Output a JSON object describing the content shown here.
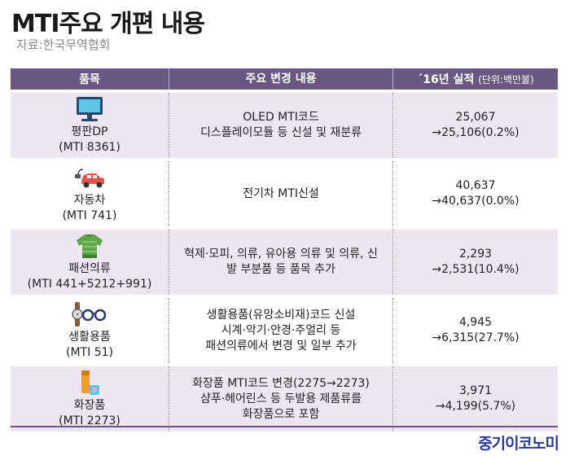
{
  "title": "MTI주요 개편 내용",
  "source": "자료:한국무역협회",
  "header": {
    "col1": "품목",
    "col2": "주요 변경 내용",
    "col3_main": "´16년 실적",
    "col3_unit": "(단위:백만불)"
  },
  "rows": [
    {
      "icon": "monitor-icon",
      "name": "평판DP",
      "code": "(MTI 8361)",
      "change": [
        "OLED MTI코드",
        "디스플레이모듈 등 신설 및 재분류"
      ],
      "perf": [
        "25,067",
        "→25,106(0.2%)"
      ]
    },
    {
      "icon": "car-icon",
      "name": "자동차",
      "code": "(MTI 741)",
      "change": [
        "전기차 MTI신설"
      ],
      "perf": [
        "40,637",
        "→40,637(0.0%)"
      ]
    },
    {
      "icon": "sweater-icon",
      "name": "패션의류",
      "code": "(MTI 441+5212+991)",
      "change": [
        "혁제·모피, 의류, 유아용 의류 및 의류, 신",
        "발 부분품 등 품목 추가"
      ],
      "perf": [
        "2,293",
        "→2,531(10.4%)"
      ]
    },
    {
      "icon": "watch-glasses-icon",
      "name": "생활용품",
      "code": "(MTI 51)",
      "change": [
        "생활용품(유망소비재)코드 신설",
        "시계·악기·안경·주얼리 등",
        "패션의류에서 변경 및 일부 추가"
      ],
      "perf": [
        "4,945",
        "→6,315(27.7%)"
      ]
    },
    {
      "icon": "cosmetics-icon",
      "name": "화장품",
      "code": "(MTI 2273)",
      "change": [
        "화장품 MTI코드 변경(2275→2273)",
        "샴푸·헤어린스 등 두발용 제품류를",
        "화장품으로 포함"
      ],
      "perf": [
        "3,971",
        "→4,199(5.7%)"
      ]
    }
  ],
  "brand": "중기이코노미"
}
